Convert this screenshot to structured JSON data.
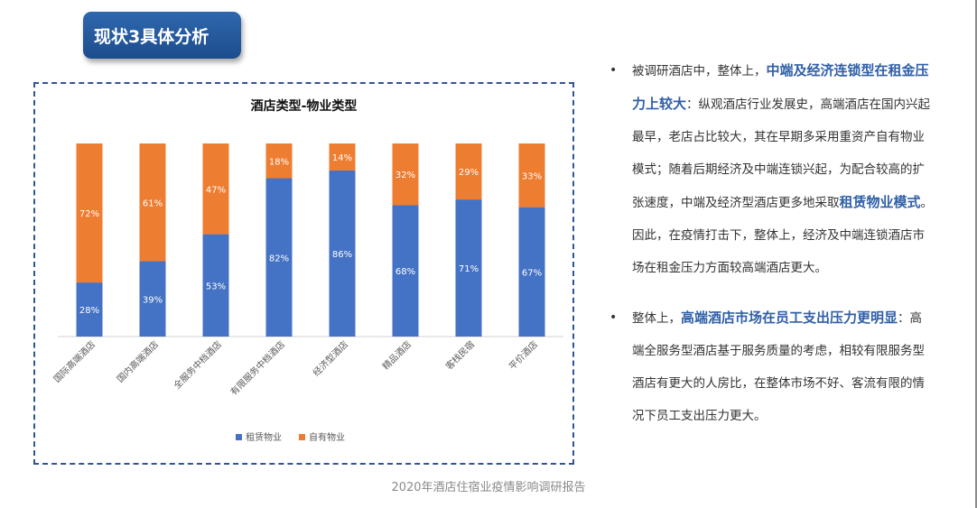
{
  "slide_title": "现状3具体分析",
  "chart_data": {
    "type": "bar",
    "stacked": true,
    "title": "酒店类型-物业类型",
    "categories": [
      "国际高端酒店",
      "国内高端酒店",
      "全服务中档酒店",
      "有限服务中档酒店",
      "经济型酒店",
      "精品酒店",
      "客栈民宿",
      "平价酒店"
    ],
    "series": [
      {
        "name": "租赁物业",
        "color": "#4472c4",
        "values": [
          28,
          39,
          53,
          82,
          86,
          68,
          71,
          67
        ],
        "labels": [
          "28%",
          "39%",
          "53%",
          "82%",
          "86%",
          "68%",
          "71%",
          "67%"
        ]
      },
      {
        "name": "自有物业",
        "color": "#ed7d31",
        "values": [
          72,
          61,
          47,
          18,
          14,
          32,
          29,
          33
        ],
        "labels": [
          "72%",
          "61%",
          "47%",
          "18%",
          "14%",
          "32%",
          "29%",
          "33%"
        ]
      }
    ],
    "ylim": [
      0,
      100
    ],
    "grid": false,
    "legend_position": "bottom"
  },
  "analysis": {
    "points": [
      {
        "segments": [
          {
            "text": "被调研酒店中，整体上，",
            "highlight": false
          },
          {
            "text": "中端及经济连锁型在租金压力上较大",
            "highlight": true
          },
          {
            "text": "：纵观酒店行业发展史，高端酒店在国内兴起最早，老店占比较大，其在早期多采用重资产自有物业模式；随着后期经济及中端连锁兴起，为配合较高的扩张速度，中端及经济型酒店更多地采取",
            "highlight": false
          },
          {
            "text": "租赁物业模式",
            "highlight": true
          },
          {
            "text": "。因此，在疫情打击下，整体上，经济及中端连锁酒店市场在租金压力方面较高端酒店更大。",
            "highlight": false
          }
        ]
      },
      {
        "segments": [
          {
            "text": "整体上，",
            "highlight": false
          },
          {
            "text": "高端酒店市场在员工支出压力更明显",
            "highlight": true
          },
          {
            "text": "：高端全服务型酒店基于服务质量的考虑，相较有限服务型酒店有更大的人房比，在整体市场不好、客流有限的情况下员工支出压力更大。",
            "highlight": false
          }
        ]
      }
    ]
  },
  "footer": "2020年酒店住宿业疫情影响调研报告"
}
